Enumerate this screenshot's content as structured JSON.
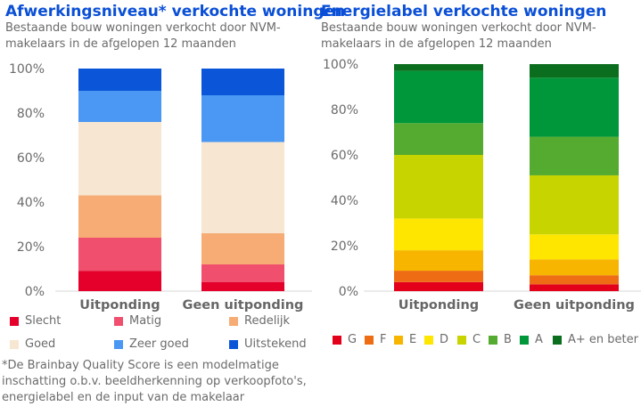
{
  "chart_data": [
    {
      "type": "bar",
      "stacked": true,
      "title": "Afwerkingsniveau* verkochte woningen",
      "subtitle_lines": [
        "Bestaande bouw woningen verkocht door NVM-",
        "makelaars in de afgelopen 12 maanden"
      ],
      "categories": [
        "Uitponding",
        "Geen uitponding"
      ],
      "ylim": [
        0,
        100
      ],
      "yticks": [
        "0%",
        "20%",
        "40%",
        "60%",
        "80%",
        "100%"
      ],
      "series": [
        {
          "name": "Slecht",
          "color": "#e4002b",
          "values": [
            9,
            4
          ]
        },
        {
          "name": "Matig",
          "color": "#f04f6e",
          "values": [
            15,
            8
          ]
        },
        {
          "name": "Redelijk",
          "color": "#f6ac74",
          "values": [
            19,
            14
          ]
        },
        {
          "name": "Goed",
          "color": "#f6e6d2",
          "values": [
            33,
            41
          ]
        },
        {
          "name": "Zeer goed",
          "color": "#4a97f4",
          "values": [
            14,
            21
          ]
        },
        {
          "name": "Uitstekend",
          "color": "#0a55d8",
          "values": [
            10,
            12
          ]
        }
      ],
      "footnote_lines": [
        "*De Brainbay Quality Score is een modelmatige",
        "inschatting o.b.v. beeldherkenning op verkoopfoto's,",
        "energielabel en de input van de makelaar"
      ]
    },
    {
      "type": "bar",
      "stacked": true,
      "title": "Energielabel verkochte woningen",
      "subtitle_lines": [
        "Bestaande bouw woningen verkocht door NVM-",
        "makelaars in de afgelopen 12 maanden"
      ],
      "categories": [
        "Uitponding",
        "Geen uitponding"
      ],
      "ylim": [
        0,
        100
      ],
      "yticks": [
        "0%",
        "20%",
        "40%",
        "60%",
        "80%",
        "100%"
      ],
      "series": [
        {
          "name": "G",
          "color": "#e3001b",
          "values": [
            4,
            3
          ]
        },
        {
          "name": "F",
          "color": "#ee6d14",
          "values": [
            5,
            4
          ]
        },
        {
          "name": "E",
          "color": "#f7b500",
          "values": [
            9,
            7
          ]
        },
        {
          "name": "D",
          "color": "#ffe600",
          "values": [
            14,
            11
          ]
        },
        {
          "name": "C",
          "color": "#c8d400",
          "values": [
            28,
            26
          ]
        },
        {
          "name": "B",
          "color": "#55ab2f",
          "values": [
            14,
            17
          ]
        },
        {
          "name": "A",
          "color": "#00973a",
          "values": [
            23,
            26
          ]
        },
        {
          "name": "A+ en beter",
          "color": "#0a6e1e",
          "values": [
            3,
            6
          ]
        }
      ]
    }
  ]
}
